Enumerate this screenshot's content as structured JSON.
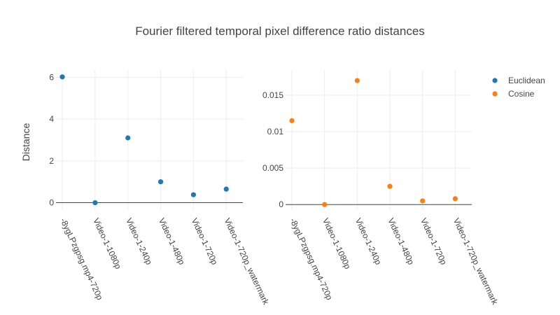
{
  "chart_data": {
    "type": "scatter",
    "title": "Fourier filtered temporal pixel difference ratio distances",
    "ylabel": "Distance",
    "categories": [
      "-8ygLPzgpsg.mp4-720p",
      "Video-1-1080p",
      "Video-1-240p",
      "Video-1-480p",
      "Video-1-720p",
      "Video-1-720p_watermark"
    ],
    "legend": {
      "placement": "top-right"
    },
    "grid": true,
    "subplots": [
      {
        "series": {
          "name": "Euclidean",
          "color": "#1f77b4",
          "values": [
            6.02,
            0.0,
            3.1,
            1.0,
            0.38,
            0.65
          ]
        },
        "ylim": [
          -0.35,
          6.35
        ],
        "yticks": [
          0,
          2,
          4,
          6
        ],
        "ytick_labels": [
          "0",
          "2",
          "4",
          "6"
        ]
      },
      {
        "series": {
          "name": "Cosine",
          "color": "#ff7f0e",
          "values": [
            0.0115,
            0.0,
            0.017,
            0.0025,
            0.0005,
            0.0008
          ]
        },
        "ylim": [
          -0.00075,
          0.01845
        ],
        "yticks": [
          0,
          0.005,
          0.01,
          0.015
        ],
        "ytick_labels": [
          "0",
          "0.005",
          "0.01",
          "0.015"
        ]
      }
    ]
  }
}
